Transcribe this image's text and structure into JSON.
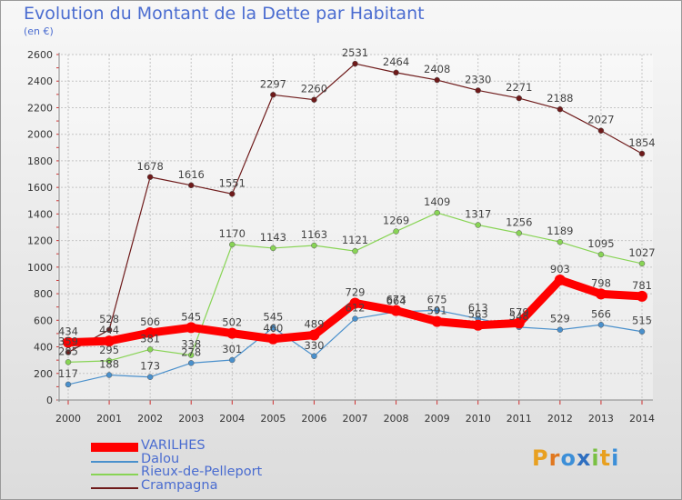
{
  "title": "Evolution du Montant de la Dette par Habitant",
  "unit_label": "(en €)",
  "chart_data": {
    "type": "line",
    "x": [
      "2000",
      "2001",
      "2002",
      "2003",
      "2004",
      "2005",
      "2006",
      "2007",
      "2008",
      "2009",
      "2010",
      "2011",
      "2012",
      "2013",
      "2014"
    ],
    "ylim": [
      0,
      2600
    ],
    "yticks": [
      0,
      200,
      400,
      600,
      800,
      1000,
      1200,
      1400,
      1600,
      1800,
      2000,
      2200,
      2400,
      2600
    ],
    "grid": true,
    "legend_position": "bottom-left",
    "series": [
      {
        "name": "VARILHES",
        "color": "#ff0000",
        "values": [
          434,
          444,
          506,
          545,
          502,
          460,
          489,
          729,
          673,
          591,
          563,
          579,
          903,
          798,
          781
        ]
      },
      {
        "name": "Dalou",
        "color": "#4a90cc",
        "values": [
          117,
          188,
          173,
          278,
          301,
          545,
          330,
          612,
          664,
          675,
          613,
          548,
          529,
          566,
          515
        ]
      },
      {
        "name": "Rieux-de-Pelleport",
        "color": "#88d455",
        "values": [
          285,
          295,
          381,
          338,
          1170,
          1143,
          1163,
          1121,
          1269,
          1409,
          1317,
          1256,
          1189,
          1095,
          1027
        ]
      },
      {
        "name": "Crampagna",
        "color": "#6e1a1a",
        "values": [
          359,
          528,
          1678,
          1616,
          1551,
          2297,
          2260,
          2531,
          2464,
          2408,
          2330,
          2271,
          2188,
          2027,
          1854
        ]
      }
    ]
  },
  "legend": [
    {
      "label": "VARILHES"
    },
    {
      "label": "Dalou"
    },
    {
      "label": "Rieux-de-Pelleport"
    },
    {
      "label": "Crampagna"
    }
  ],
  "logo": {
    "text": "Proxiti",
    "colors": [
      "#e8a020",
      "#e07820",
      "#3c8fd8",
      "#2f6fc0",
      "#7ac043",
      "#e8a020",
      "#3c8fd8"
    ]
  }
}
